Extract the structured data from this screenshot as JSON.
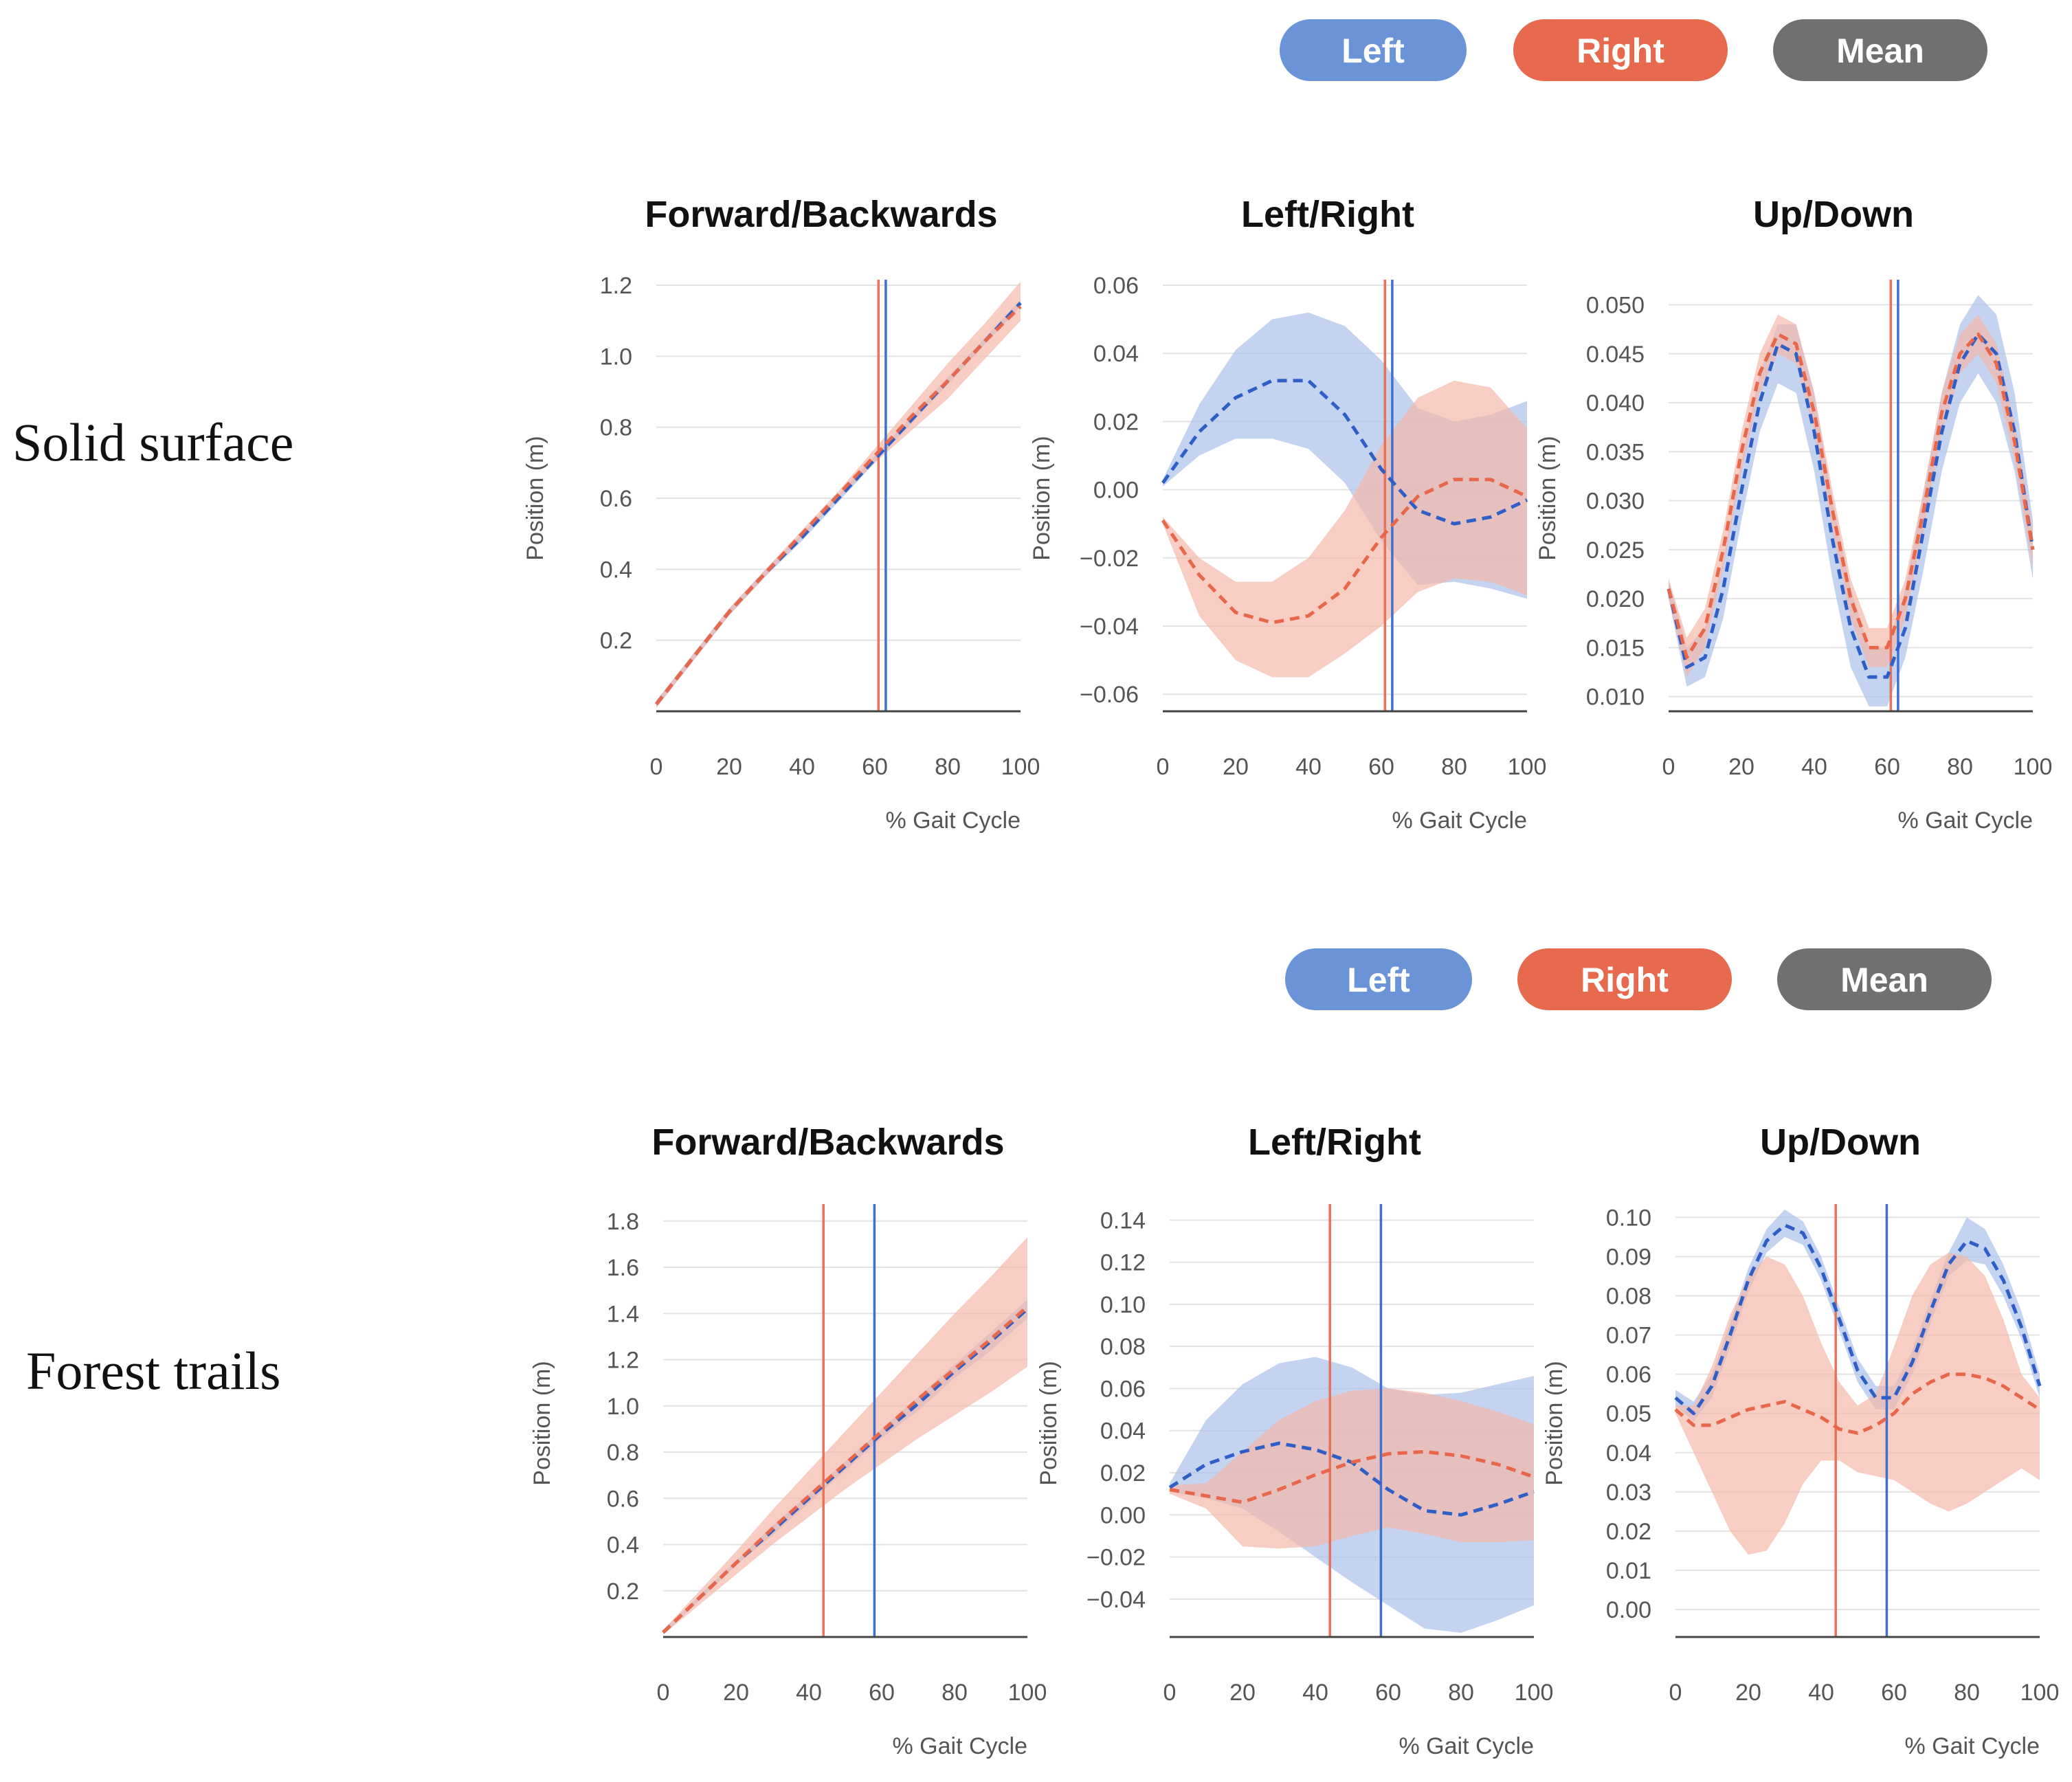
{
  "legend": {
    "left": "Left",
    "right": "Right",
    "mean": "Mean",
    "colors": {
      "left": "#6a93d8",
      "right": "#e86a4e",
      "mean": "#707070"
    }
  },
  "series_colors": {
    "left_line": "#2f5ec6",
    "left_band": "#a9c0ea",
    "right_line": "#e8664a",
    "right_band": "#f5b8aa",
    "left_marker": "#3f6fcf",
    "right_marker": "#e8735a"
  },
  "rows": [
    {
      "label": "Solid surface"
    },
    {
      "label": "Forest trails"
    }
  ],
  "chart_data": [
    {
      "type": "line",
      "row": 0,
      "title": "Forward/Backwards",
      "xlabel": "% Gait Cycle",
      "ylabel": "Position (m)",
      "xlim": [
        0,
        100
      ],
      "ylim": [
        0.0,
        1.2
      ],
      "xticks": [
        "0",
        "20",
        "40",
        "60",
        "80",
        "100"
      ],
      "yticks": [
        {
          "v": 1.2,
          "t": "1.2"
        },
        {
          "v": 1.0,
          "t": "1.0"
        },
        {
          "v": 0.8,
          "t": "0.8"
        },
        {
          "v": 0.6,
          "t": "0.6"
        },
        {
          "v": 0.4,
          "t": "0.4"
        },
        {
          "v": 0.2,
          "t": "0.2"
        }
      ],
      "x": [
        0,
        10,
        20,
        30,
        40,
        50,
        60,
        70,
        80,
        90,
        100
      ],
      "series": [
        {
          "name": "Left",
          "mean": [
            0.02,
            0.15,
            0.28,
            0.39,
            0.49,
            0.6,
            0.71,
            0.82,
            0.93,
            1.04,
            1.15
          ],
          "upper": [
            0.03,
            0.16,
            0.29,
            0.4,
            0.5,
            0.61,
            0.72,
            0.83,
            0.94,
            1.05,
            1.16
          ],
          "lower": [
            0.01,
            0.14,
            0.27,
            0.38,
            0.48,
            0.59,
            0.7,
            0.81,
            0.92,
            1.03,
            1.14
          ]
        },
        {
          "name": "Right",
          "mean": [
            0.02,
            0.15,
            0.28,
            0.39,
            0.5,
            0.61,
            0.72,
            0.83,
            0.93,
            1.04,
            1.14
          ],
          "upper": [
            0.03,
            0.16,
            0.29,
            0.4,
            0.51,
            0.62,
            0.74,
            0.86,
            0.98,
            1.09,
            1.21
          ],
          "lower": [
            0.01,
            0.14,
            0.27,
            0.38,
            0.49,
            0.6,
            0.7,
            0.79,
            0.88,
            0.99,
            1.1
          ]
        }
      ],
      "vlines": [
        {
          "name": "Right",
          "x": 61
        },
        {
          "name": "Left",
          "x": 63
        }
      ]
    },
    {
      "type": "line",
      "row": 0,
      "title": "Left/Right",
      "xlabel": "% Gait Cycle",
      "ylabel": "Position (m)",
      "xlim": [
        0,
        100
      ],
      "ylim": [
        -0.065,
        0.06
      ],
      "xticks": [
        "0",
        "20",
        "40",
        "60",
        "80",
        "100"
      ],
      "yticks": [
        {
          "v": 0.06,
          "t": "0.06"
        },
        {
          "v": 0.04,
          "t": "0.04"
        },
        {
          "v": 0.02,
          "t": "0.02"
        },
        {
          "v": 0.0,
          "t": "0.00"
        },
        {
          "v": -0.02,
          "t": "−0.02"
        },
        {
          "v": -0.04,
          "t": "−0.04"
        },
        {
          "v": -0.06,
          "t": "−0.06"
        }
      ],
      "x": [
        0,
        10,
        20,
        30,
        40,
        50,
        60,
        70,
        80,
        90,
        100
      ],
      "series": [
        {
          "name": "Left",
          "mean": [
            0.002,
            0.017,
            0.027,
            0.032,
            0.032,
            0.022,
            0.006,
            -0.006,
            -0.01,
            -0.008,
            -0.003
          ],
          "upper": [
            0.003,
            0.025,
            0.041,
            0.05,
            0.052,
            0.048,
            0.038,
            0.024,
            0.02,
            0.022,
            0.026
          ],
          "lower": [
            0.001,
            0.01,
            0.015,
            0.015,
            0.012,
            0.002,
            -0.015,
            -0.028,
            -0.027,
            -0.029,
            -0.032
          ]
        },
        {
          "name": "Right",
          "mean": [
            -0.009,
            -0.025,
            -0.036,
            -0.039,
            -0.037,
            -0.029,
            -0.014,
            -0.002,
            0.003,
            0.003,
            -0.002
          ],
          "upper": [
            -0.008,
            -0.02,
            -0.027,
            -0.027,
            -0.02,
            -0.006,
            0.013,
            0.027,
            0.032,
            0.03,
            0.018
          ],
          "lower": [
            -0.01,
            -0.037,
            -0.05,
            -0.055,
            -0.055,
            -0.048,
            -0.04,
            -0.03,
            -0.026,
            -0.027,
            -0.031
          ]
        }
      ],
      "vlines": [
        {
          "name": "Right",
          "x": 61
        },
        {
          "name": "Left",
          "x": 63
        }
      ]
    },
    {
      "type": "line",
      "row": 0,
      "title": "Up/Down",
      "xlabel": "% Gait Cycle",
      "ylabel": "Position (m)",
      "xlim": [
        0,
        100
      ],
      "ylim": [
        0.0085,
        0.052
      ],
      "xticks": [
        "0",
        "20",
        "40",
        "60",
        "80",
        "100"
      ],
      "yticks": [
        {
          "v": 0.05,
          "t": "0.050"
        },
        {
          "v": 0.045,
          "t": "0.045"
        },
        {
          "v": 0.04,
          "t": "0.040"
        },
        {
          "v": 0.035,
          "t": "0.035"
        },
        {
          "v": 0.03,
          "t": "0.030"
        },
        {
          "v": 0.025,
          "t": "0.025"
        },
        {
          "v": 0.02,
          "t": "0.020"
        },
        {
          "v": 0.015,
          "t": "0.015"
        },
        {
          "v": 0.01,
          "t": "0.010"
        }
      ],
      "x": [
        0,
        5,
        10,
        15,
        20,
        25,
        30,
        35,
        40,
        45,
        50,
        55,
        60,
        65,
        70,
        75,
        80,
        85,
        90,
        95,
        100
      ],
      "series": [
        {
          "name": "Left",
          "mean": [
            0.021,
            0.013,
            0.014,
            0.021,
            0.031,
            0.04,
            0.046,
            0.045,
            0.037,
            0.026,
            0.017,
            0.012,
            0.012,
            0.017,
            0.027,
            0.037,
            0.044,
            0.047,
            0.045,
            0.037,
            0.025
          ],
          "upper": [
            0.022,
            0.015,
            0.017,
            0.024,
            0.034,
            0.043,
            0.048,
            0.048,
            0.041,
            0.03,
            0.021,
            0.015,
            0.015,
            0.021,
            0.031,
            0.041,
            0.048,
            0.051,
            0.049,
            0.041,
            0.028
          ],
          "lower": [
            0.02,
            0.011,
            0.012,
            0.018,
            0.028,
            0.037,
            0.042,
            0.041,
            0.033,
            0.022,
            0.013,
            0.009,
            0.009,
            0.014,
            0.023,
            0.033,
            0.04,
            0.043,
            0.04,
            0.033,
            0.022
          ]
        },
        {
          "name": "Right",
          "mean": [
            0.021,
            0.014,
            0.017,
            0.025,
            0.035,
            0.043,
            0.047,
            0.046,
            0.039,
            0.029,
            0.02,
            0.015,
            0.015,
            0.02,
            0.029,
            0.039,
            0.045,
            0.047,
            0.044,
            0.036,
            0.025
          ],
          "upper": [
            0.022,
            0.016,
            0.019,
            0.027,
            0.037,
            0.045,
            0.049,
            0.048,
            0.041,
            0.031,
            0.022,
            0.017,
            0.017,
            0.022,
            0.031,
            0.041,
            0.047,
            0.049,
            0.046,
            0.038,
            0.027
          ],
          "lower": [
            0.02,
            0.012,
            0.015,
            0.023,
            0.033,
            0.041,
            0.045,
            0.044,
            0.037,
            0.027,
            0.018,
            0.013,
            0.013,
            0.018,
            0.027,
            0.037,
            0.043,
            0.045,
            0.042,
            0.034,
            0.023
          ]
        }
      ],
      "vlines": [
        {
          "name": "Right",
          "x": 61
        },
        {
          "name": "Left",
          "x": 63
        }
      ]
    },
    {
      "type": "line",
      "row": 1,
      "title": "Forward/Backwards",
      "xlabel": "% Gait Cycle",
      "ylabel": "Position (m)",
      "xlim": [
        0,
        100
      ],
      "ylim": [
        0.0,
        1.85
      ],
      "xticks": [
        "0",
        "20",
        "40",
        "60",
        "80",
        "100"
      ],
      "yticks": [
        {
          "v": 1.8,
          "t": "1.8"
        },
        {
          "v": 1.6,
          "t": "1.6"
        },
        {
          "v": 1.4,
          "t": "1.4"
        },
        {
          "v": 1.2,
          "t": "1.2"
        },
        {
          "v": 1.0,
          "t": "1.0"
        },
        {
          "v": 0.8,
          "t": "0.8"
        },
        {
          "v": 0.6,
          "t": "0.6"
        },
        {
          "v": 0.4,
          "t": "0.4"
        },
        {
          "v": 0.2,
          "t": "0.2"
        }
      ],
      "x": [
        0,
        10,
        20,
        30,
        40,
        50,
        60,
        70,
        80,
        90,
        100
      ],
      "series": [
        {
          "name": "Left",
          "mean": [
            0.02,
            0.17,
            0.32,
            0.46,
            0.6,
            0.74,
            0.88,
            1.01,
            1.15,
            1.28,
            1.42
          ],
          "upper": [
            0.03,
            0.18,
            0.33,
            0.48,
            0.62,
            0.76,
            0.9,
            1.04,
            1.18,
            1.32,
            1.46
          ],
          "lower": [
            0.01,
            0.16,
            0.31,
            0.44,
            0.58,
            0.72,
            0.86,
            0.98,
            1.12,
            1.24,
            1.38
          ]
        },
        {
          "name": "Right",
          "mean": [
            0.02,
            0.17,
            0.32,
            0.47,
            0.61,
            0.75,
            0.89,
            1.03,
            1.16,
            1.29,
            1.43
          ],
          "upper": [
            0.03,
            0.2,
            0.37,
            0.55,
            0.72,
            0.89,
            1.06,
            1.23,
            1.4,
            1.56,
            1.73
          ],
          "lower": [
            0.01,
            0.14,
            0.27,
            0.4,
            0.52,
            0.64,
            0.75,
            0.86,
            0.96,
            1.06,
            1.17
          ]
        }
      ],
      "vlines": [
        {
          "name": "Right",
          "x": 44
        },
        {
          "name": "Left",
          "x": 58
        }
      ]
    },
    {
      "type": "line",
      "row": 1,
      "title": "Left/Right",
      "xlabel": "% Gait Cycle",
      "ylabel": "Position (m)",
      "xlim": [
        0,
        100
      ],
      "ylim": [
        -0.058,
        0.145
      ],
      "xticks": [
        "0",
        "20",
        "40",
        "60",
        "80",
        "100"
      ],
      "yticks": [
        {
          "v": 0.14,
          "t": "0.14"
        },
        {
          "v": 0.12,
          "t": "0.12"
        },
        {
          "v": 0.1,
          "t": "0.10"
        },
        {
          "v": 0.08,
          "t": "0.08"
        },
        {
          "v": 0.06,
          "t": "0.06"
        },
        {
          "v": 0.04,
          "t": "0.04"
        },
        {
          "v": 0.02,
          "t": "0.02"
        },
        {
          "v": 0.0,
          "t": "0.00"
        },
        {
          "v": -0.02,
          "t": "−0.02"
        },
        {
          "v": -0.04,
          "t": "−0.04"
        }
      ],
      "x": [
        0,
        10,
        20,
        30,
        40,
        50,
        60,
        70,
        80,
        90,
        100
      ],
      "series": [
        {
          "name": "Left",
          "mean": [
            0.013,
            0.024,
            0.03,
            0.034,
            0.031,
            0.025,
            0.012,
            0.002,
            0.0,
            0.005,
            0.011
          ],
          "upper": [
            0.015,
            0.045,
            0.062,
            0.072,
            0.075,
            0.07,
            0.06,
            0.057,
            0.058,
            0.062,
            0.066
          ],
          "lower": [
            0.011,
            0.008,
            0.003,
            -0.008,
            -0.02,
            -0.032,
            -0.043,
            -0.054,
            -0.056,
            -0.05,
            -0.043
          ]
        },
        {
          "name": "Right",
          "mean": [
            0.012,
            0.009,
            0.006,
            0.012,
            0.019,
            0.025,
            0.029,
            0.03,
            0.028,
            0.024,
            0.018
          ],
          "upper": [
            0.014,
            0.015,
            0.03,
            0.045,
            0.054,
            0.059,
            0.06,
            0.058,
            0.054,
            0.049,
            0.043
          ],
          "lower": [
            0.01,
            0.003,
            -0.015,
            -0.016,
            -0.015,
            -0.01,
            -0.006,
            -0.009,
            -0.013,
            -0.013,
            -0.012
          ]
        }
      ],
      "vlines": [
        {
          "name": "Right",
          "x": 44
        },
        {
          "name": "Left",
          "x": 58
        }
      ]
    },
    {
      "type": "line",
      "row": 1,
      "title": "Up/Down",
      "xlabel": "% Gait Cycle",
      "ylabel": "Position (m)",
      "xlim": [
        0,
        100
      ],
      "ylim": [
        -0.007,
        0.102
      ],
      "xticks": [
        "0",
        "20",
        "40",
        "60",
        "80",
        "100"
      ],
      "yticks": [
        {
          "v": 0.1,
          "t": "0.10"
        },
        {
          "v": 0.09,
          "t": "0.09"
        },
        {
          "v": 0.08,
          "t": "0.08"
        },
        {
          "v": 0.07,
          "t": "0.07"
        },
        {
          "v": 0.06,
          "t": "0.06"
        },
        {
          "v": 0.05,
          "t": "0.05"
        },
        {
          "v": 0.04,
          "t": "0.04"
        },
        {
          "v": 0.03,
          "t": "0.03"
        },
        {
          "v": 0.02,
          "t": "0.02"
        },
        {
          "v": 0.01,
          "t": "0.01"
        },
        {
          "v": 0.0,
          "t": "0.00"
        }
      ],
      "x": [
        0,
        5,
        10,
        15,
        20,
        25,
        30,
        35,
        40,
        45,
        50,
        55,
        60,
        65,
        70,
        75,
        80,
        85,
        90,
        95,
        100
      ],
      "series": [
        {
          "name": "Left",
          "mean": [
            0.054,
            0.05,
            0.057,
            0.07,
            0.084,
            0.094,
            0.098,
            0.096,
            0.087,
            0.074,
            0.061,
            0.054,
            0.054,
            0.063,
            0.076,
            0.088,
            0.094,
            0.092,
            0.084,
            0.072,
            0.057
          ],
          "upper": [
            0.056,
            0.053,
            0.06,
            0.073,
            0.087,
            0.097,
            0.102,
            0.099,
            0.09,
            0.077,
            0.064,
            0.057,
            0.057,
            0.066,
            0.079,
            0.091,
            0.1,
            0.097,
            0.088,
            0.076,
            0.06
          ],
          "lower": [
            0.052,
            0.048,
            0.054,
            0.067,
            0.081,
            0.091,
            0.095,
            0.093,
            0.084,
            0.071,
            0.058,
            0.051,
            0.051,
            0.06,
            0.073,
            0.085,
            0.089,
            0.088,
            0.08,
            0.069,
            0.054
          ]
        },
        {
          "name": "Right",
          "mean": [
            0.051,
            0.047,
            0.047,
            0.049,
            0.051,
            0.052,
            0.053,
            0.051,
            0.049,
            0.046,
            0.045,
            0.047,
            0.05,
            0.055,
            0.058,
            0.06,
            0.06,
            0.059,
            0.057,
            0.054,
            0.051
          ],
          "upper": [
            0.052,
            0.052,
            0.062,
            0.075,
            0.085,
            0.09,
            0.088,
            0.08,
            0.068,
            0.058,
            0.052,
            0.055,
            0.067,
            0.08,
            0.088,
            0.091,
            0.09,
            0.085,
            0.074,
            0.06,
            0.054
          ],
          "lower": [
            0.05,
            0.04,
            0.03,
            0.02,
            0.014,
            0.015,
            0.022,
            0.032,
            0.038,
            0.038,
            0.035,
            0.034,
            0.033,
            0.03,
            0.027,
            0.025,
            0.027,
            0.03,
            0.033,
            0.036,
            0.033
          ]
        }
      ],
      "vlines": [
        {
          "name": "Right",
          "x": 44
        },
        {
          "name": "Left",
          "x": 58
        }
      ]
    }
  ]
}
